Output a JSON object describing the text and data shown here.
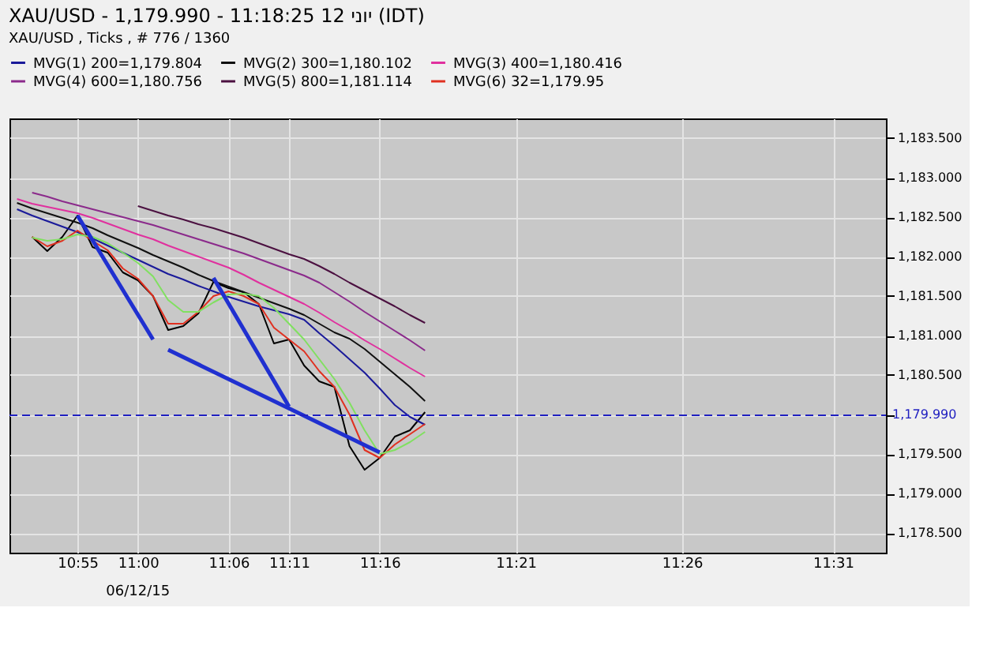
{
  "chart_data": {
    "type": "line",
    "title": "XAU/USD - 1,179.990 - 11:18:25 12 יוני (IDT)",
    "subtitle": "XAU/USD , Ticks , # 776 / 1360",
    "categories": [
      null,
      null,
      null,
      null,
      "10:55",
      null,
      null,
      null,
      "11:00",
      null,
      null,
      null,
      null,
      null,
      "11:06",
      null,
      null,
      null,
      "11:11",
      null,
      null,
      null,
      null,
      null,
      "11:16",
      null,
      null,
      null,
      null,
      null,
      null,
      null,
      null,
      "11:21",
      null,
      null,
      null,
      null,
      null,
      null,
      null,
      null,
      null,
      null,
      "11:26",
      null,
      null,
      null,
      null,
      null,
      null,
      null,
      null,
      null,
      "11:31",
      null,
      null,
      null
    ],
    "ylim": [
      1178.25,
      1183.75
    ],
    "yticks": [
      {
        "value": 1178.5,
        "label": "1,178.500"
      },
      {
        "value": 1179,
        "label": "1,179.000"
      },
      {
        "value": 1179.5,
        "label": "1,179.500"
      },
      {
        "value": 1180,
        "label": null
      },
      {
        "value": 1180.5,
        "label": "1,180.500"
      },
      {
        "value": 1181,
        "label": "1,181.000"
      },
      {
        "value": 1181.5,
        "label": "1,181.500"
      },
      {
        "value": 1182,
        "label": "1,182.000"
      },
      {
        "value": 1182.5,
        "label": "1,182.500"
      },
      {
        "value": 1183,
        "label": "1,183.000"
      },
      {
        "value": 1183.5,
        "label": "1,183.500"
      }
    ],
    "grid": true,
    "legend": "top",
    "line_style": "solid",
    "annotations": [
      "06/12/15"
    ],
    "ref_lines": [
      {
        "axis": "y",
        "value": 1179.99,
        "label": "1,179.990",
        "color": "#2020c0",
        "line_style": "dashed"
      }
    ],
    "series": [
      {
        "color": "#000000",
        "values": [
          null,
          1182.25,
          1182.07,
          1182.25,
          1182.52,
          1182.12,
          1182.05,
          1181.8,
          1181.7,
          1181.5,
          1181.07,
          1181.12,
          1181.28,
          1181.68,
          1181.6,
          1181.55,
          1181.4,
          1180.9,
          1180.95,
          1180.62,
          1180.42,
          1180.35,
          1179.6,
          1179.3,
          1179.45,
          1179.72,
          1179.8,
          1180.03,
          null,
          null,
          null,
          null,
          null,
          null,
          null,
          null,
          null,
          null,
          null,
          null,
          null,
          null,
          null,
          null,
          null,
          null,
          null,
          null,
          null,
          null,
          null,
          null,
          null,
          null,
          null,
          null,
          null,
          null
        ]
      },
      {
        "name": "MVG(1) 200=1,179.804",
        "color": "#1a1a9a",
        "values": [
          1182.6,
          1182.52,
          1182.45,
          1182.38,
          1182.31,
          1182.23,
          1182.14,
          1182.05,
          1181.96,
          1181.87,
          1181.78,
          1181.71,
          1181.63,
          1181.56,
          1181.49,
          1181.43,
          1181.37,
          1181.32,
          1181.27,
          1181.2,
          1181.03,
          1180.87,
          1180.7,
          1180.53,
          1180.33,
          1180.12,
          1179.97,
          1179.87,
          null,
          null,
          null,
          null,
          null,
          null,
          null,
          null,
          null,
          null,
          null,
          null,
          null,
          null,
          null,
          null,
          null,
          null,
          null,
          null,
          null,
          null,
          null,
          null,
          null,
          null,
          null,
          null,
          null,
          null
        ]
      },
      {
        "name": "MVG(2) 300=1,180.102",
        "color": "#101010",
        "values": [
          1182.68,
          1182.61,
          1182.55,
          1182.49,
          1182.43,
          1182.36,
          1182.27,
          1182.19,
          1182.11,
          1182.02,
          1181.94,
          1181.86,
          1181.77,
          1181.69,
          1181.62,
          1181.55,
          1181.48,
          1181.41,
          1181.34,
          1181.26,
          1181.15,
          1181.04,
          1180.96,
          1180.83,
          1180.67,
          1180.51,
          1180.35,
          1180.17,
          null,
          null,
          null,
          null,
          null,
          null,
          null,
          null,
          null,
          null,
          null,
          null,
          null,
          null,
          null,
          null,
          null,
          null,
          null,
          null,
          null,
          null,
          null,
          null,
          null,
          null,
          null,
          null,
          null,
          null
        ]
      },
      {
        "name": "MVG(3) 400=1,180.416",
        "color": "#e0309e",
        "values": [
          1182.73,
          1182.67,
          1182.63,
          1182.59,
          1182.55,
          1182.49,
          1182.42,
          1182.35,
          1182.28,
          1182.22,
          1182.14,
          1182.07,
          1182.0,
          1181.93,
          1181.86,
          1181.77,
          1181.67,
          1181.58,
          1181.49,
          1181.4,
          1181.29,
          1181.17,
          1181.06,
          1180.94,
          1180.83,
          1180.71,
          1180.59,
          1180.48,
          null,
          null,
          null,
          null,
          null,
          null,
          null,
          null,
          null,
          null,
          null,
          null,
          null,
          null,
          null,
          null,
          null,
          null,
          null,
          null,
          null,
          null,
          null,
          null,
          null,
          null,
          null,
          null,
          null,
          null
        ]
      },
      {
        "name": "MVG(4) 600=1,180.756",
        "color": "#8b2a8b",
        "values": [
          null,
          1182.81,
          1182.76,
          1182.7,
          1182.65,
          1182.6,
          1182.55,
          1182.5,
          1182.45,
          1182.4,
          1182.34,
          1182.28,
          1182.22,
          1182.16,
          1182.1,
          1182.04,
          1181.97,
          1181.9,
          1181.83,
          1181.76,
          1181.67,
          1181.55,
          1181.43,
          1181.3,
          1181.18,
          1181.06,
          1180.94,
          1180.81,
          null,
          null,
          null,
          null,
          null,
          null,
          null,
          null,
          null,
          null,
          null,
          null,
          null,
          null,
          null,
          null,
          null,
          null,
          null,
          null,
          null,
          null,
          null,
          null,
          null,
          null,
          null,
          null,
          null,
          null
        ]
      },
      {
        "name": "MVG(5) 800=1,181.114",
        "color": "#4b1040",
        "values": [
          null,
          null,
          null,
          null,
          null,
          null,
          null,
          null,
          1182.64,
          1182.58,
          1182.52,
          1182.47,
          1182.41,
          1182.36,
          1182.3,
          1182.24,
          1182.17,
          1182.1,
          1182.03,
          1181.97,
          1181.88,
          1181.78,
          1181.67,
          1181.57,
          1181.47,
          1181.37,
          1181.26,
          1181.16,
          null,
          null,
          null,
          null,
          null,
          null,
          null,
          null,
          null,
          null,
          null,
          null,
          null,
          null,
          null,
          null,
          null,
          null,
          null,
          null,
          null,
          null,
          null,
          null,
          null,
          null,
          null,
          null,
          null,
          null
        ]
      },
      {
        "name": "MVG(6) 32=1,179.95",
        "color": "#e03020",
        "values": [
          null,
          1182.25,
          1182.13,
          1182.2,
          1182.33,
          1182.2,
          1182.08,
          1181.85,
          1181.72,
          1181.5,
          1181.15,
          1181.15,
          1181.3,
          1181.5,
          1181.56,
          1181.5,
          1181.4,
          1181.1,
          1180.95,
          1180.8,
          1180.55,
          1180.35,
          1180.0,
          1179.55,
          1179.45,
          1179.62,
          1179.75,
          1179.88,
          null,
          null,
          null,
          null,
          null,
          null,
          null,
          null,
          null,
          null,
          null,
          null,
          null,
          null,
          null,
          null,
          null,
          null,
          null,
          null,
          null,
          null,
          null,
          null,
          null,
          null,
          null,
          null,
          null,
          null
        ]
      },
      {
        "color": "#80e060",
        "values": [
          null,
          1182.24,
          1182.2,
          1182.22,
          1182.28,
          1182.25,
          1182.17,
          1182.05,
          1181.92,
          1181.75,
          1181.45,
          1181.3,
          1181.3,
          1181.42,
          1181.52,
          1181.53,
          1181.5,
          1181.35,
          1181.15,
          1180.95,
          1180.7,
          1180.45,
          1180.15,
          1179.8,
          1179.5,
          1179.55,
          1179.65,
          1179.78,
          null,
          null,
          null,
          null,
          null,
          null,
          null,
          null,
          null,
          null,
          null,
          null,
          null,
          null,
          null,
          null,
          null,
          null,
          null,
          null,
          null,
          null,
          null,
          null,
          null,
          null,
          null,
          null,
          null,
          null
        ]
      },
      {
        "type": "line",
        "color": "#2030d0",
        "values": [
          null,
          null,
          null,
          null,
          1182.52,
          null,
          null,
          null,
          null,
          1180.95,
          null,
          null,
          null,
          null,
          null,
          null,
          null,
          null,
          null,
          null,
          null,
          null,
          null,
          null,
          null,
          null,
          null,
          null,
          null,
          null,
          null,
          null,
          null,
          null,
          null,
          null,
          null,
          null,
          null,
          null,
          null,
          null,
          null,
          null,
          null,
          null,
          null,
          null,
          null,
          null,
          null,
          null,
          null,
          null,
          null,
          null,
          null,
          null
        ]
      },
      {
        "type": "line",
        "color": "#2030d0",
        "values": [
          null,
          null,
          null,
          null,
          null,
          null,
          null,
          null,
          null,
          null,
          1180.82,
          null,
          null,
          null,
          null,
          null,
          null,
          null,
          null,
          null,
          null,
          null,
          null,
          null,
          1179.52,
          null,
          null,
          null,
          null,
          null,
          null,
          null,
          null,
          null,
          null,
          null,
          null,
          null,
          null,
          null,
          null,
          null,
          null,
          null,
          null,
          null,
          null,
          null,
          null,
          null,
          null,
          null,
          null,
          null,
          null,
          null,
          null,
          null
        ]
      },
      {
        "type": "line",
        "color": "#2030d0",
        "values": [
          null,
          null,
          null,
          null,
          null,
          null,
          null,
          null,
          null,
          null,
          null,
          null,
          null,
          1181.73,
          null,
          null,
          null,
          null,
          1180.1,
          null,
          null,
          null,
          null,
          null,
          null,
          null,
          null,
          null,
          null,
          null,
          null,
          null,
          null,
          null,
          null,
          null,
          null,
          null,
          null,
          null,
          null,
          null,
          null,
          null,
          null,
          null,
          null,
          null,
          null,
          null,
          null,
          null,
          null,
          null,
          null,
          null,
          null,
          null
        ]
      }
    ]
  }
}
